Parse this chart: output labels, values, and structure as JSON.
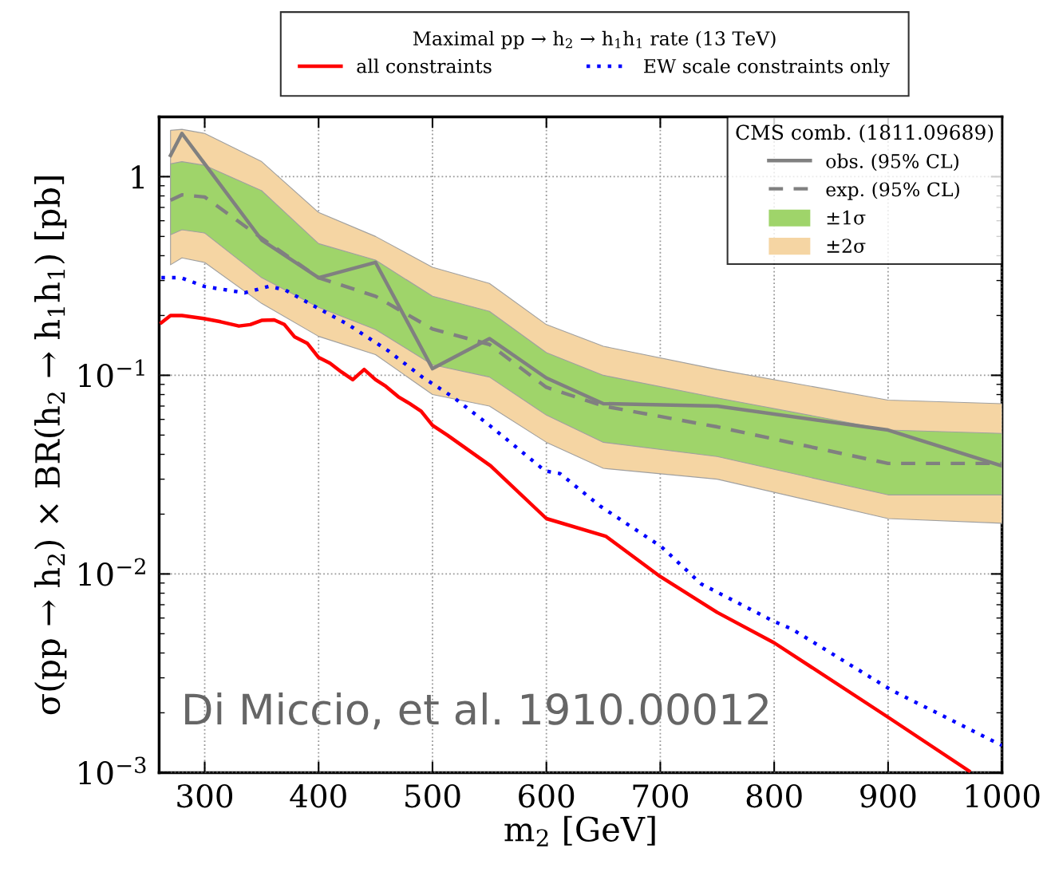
{
  "chart_data": {
    "type": "line",
    "title": "Maximal pp → h$_{2}$ → h$_{1}$h$_{1}$ rate (13 TeV)",
    "legend_title": "CMS comb. (1811.09689)",
    "xlabel": "m$_{2}$ [GeV]",
    "ylabel": "σ(pp → h$_{2}$) × BR(h$_{2}$ → h$_{1}$h$_{1}$) [pb]",
    "log": "y",
    "xlim": [
      260,
      1000
    ],
    "xticks": [
      300,
      400,
      500,
      600,
      700,
      800,
      900,
      1000
    ],
    "ylim": [
      0.001,
      2
    ],
    "yticks": [
      {
        "value": 0.001,
        "label": "10$^{−3}$"
      },
      {
        "value": 0.01,
        "label": "10$^{−2}$"
      },
      {
        "value": 0.1,
        "label": "10$^{−1}$"
      },
      1
    ],
    "grid": true,
    "legend": "top right",
    "annotations": [
      "Di Miccio, et al. 1910.00012"
    ],
    "series": [
      {
        "name": "all constraints",
        "color": "#ff0000",
        "line_style": "solid",
        "x": [
          262,
          270,
          280,
          299,
          314,
          330,
          340,
          350,
          361,
          370,
          379,
          390,
          400,
          410,
          420,
          430,
          440,
          450,
          459,
          470,
          480,
          490,
          500,
          513,
          551,
          600,
          652,
          700,
          750,
          800,
          900,
          971
        ],
        "values": [
          0.184,
          0.2,
          0.2,
          0.193,
          0.186,
          0.177,
          0.18,
          0.189,
          0.19,
          0.18,
          0.156,
          0.145,
          0.123,
          0.115,
          0.104,
          0.095,
          0.107,
          0.095,
          0.088,
          0.078,
          0.072,
          0.066,
          0.056,
          0.05,
          0.035,
          0.019,
          0.0155,
          0.0097,
          0.0064,
          0.0045,
          0.0019,
          0.00102
        ]
      },
      {
        "name": "EW scale constraints only",
        "color": "#0000ff",
        "line_style": "dotted",
        "x": [
          262,
          279,
          300,
          335,
          356,
          370,
          398,
          426,
          461,
          491,
          519,
          550,
          599,
          612,
          647,
          701,
          736,
          799,
          815,
          903,
          1000
        ],
        "values": [
          0.31,
          0.31,
          0.28,
          0.26,
          0.28,
          0.27,
          0.22,
          0.18,
          0.133,
          0.098,
          0.077,
          0.056,
          0.033,
          0.032,
          0.022,
          0.0137,
          0.0089,
          0.0058,
          0.0053,
          0.0026,
          0.00137
        ]
      },
      {
        "name": "obs. (95% CL)",
        "color": "#808080",
        "line_style": "solid",
        "x": [
          270,
          280,
          350,
          400,
          450,
          500,
          550,
          600,
          650,
          750,
          900,
          1000
        ],
        "values": [
          1.28,
          1.65,
          0.48,
          0.31,
          0.37,
          0.108,
          0.153,
          0.097,
          0.072,
          0.07,
          0.053,
          0.035
        ]
      },
      {
        "name": "exp. (95% CL)",
        "color": "#808080",
        "line_style": "dashed",
        "x": [
          270,
          280,
          300,
          350,
          400,
          450,
          500,
          550,
          600,
          650,
          750,
          900,
          1000
        ],
        "values": [
          0.76,
          0.81,
          0.79,
          0.49,
          0.31,
          0.25,
          0.171,
          0.143,
          0.087,
          0.07,
          0.055,
          0.036,
          0.036
        ]
      },
      {
        "name": "±1σ",
        "type": "area",
        "color": "#9fd46a",
        "x": [
          270,
          280,
          300,
          350,
          400,
          450,
          500,
          550,
          600,
          650,
          750,
          900,
          1000
        ],
        "values": [
          null,
          null,
          null,
          null,
          null,
          null,
          null,
          null,
          null,
          null,
          null,
          null,
          null
        ],
        "lower": [
          0.51,
          0.54,
          0.52,
          0.31,
          0.22,
          0.17,
          0.113,
          0.098,
          0.063,
          0.046,
          0.039,
          0.025,
          0.025
        ],
        "upper": [
          1.16,
          1.19,
          1.14,
          0.85,
          0.46,
          0.38,
          0.25,
          0.21,
          0.13,
          0.1,
          0.077,
          0.053,
          0.051
        ]
      },
      {
        "name": "±2σ",
        "type": "area",
        "color": "#f5d5a3",
        "x": [
          270,
          280,
          300,
          350,
          400,
          450,
          500,
          550,
          600,
          650,
          750,
          900,
          1000
        ],
        "values": [
          null,
          null,
          null,
          null,
          null,
          null,
          null,
          null,
          null,
          null,
          null,
          null,
          null
        ],
        "lower": [
          0.36,
          0.39,
          0.37,
          0.23,
          0.157,
          0.127,
          0.08,
          0.07,
          0.046,
          0.034,
          0.03,
          0.019,
          0.018
        ],
        "upper": [
          1.71,
          1.73,
          1.65,
          1.19,
          0.66,
          0.5,
          0.35,
          0.29,
          0.18,
          0.14,
          0.107,
          0.075,
          0.072
        ]
      }
    ]
  }
}
